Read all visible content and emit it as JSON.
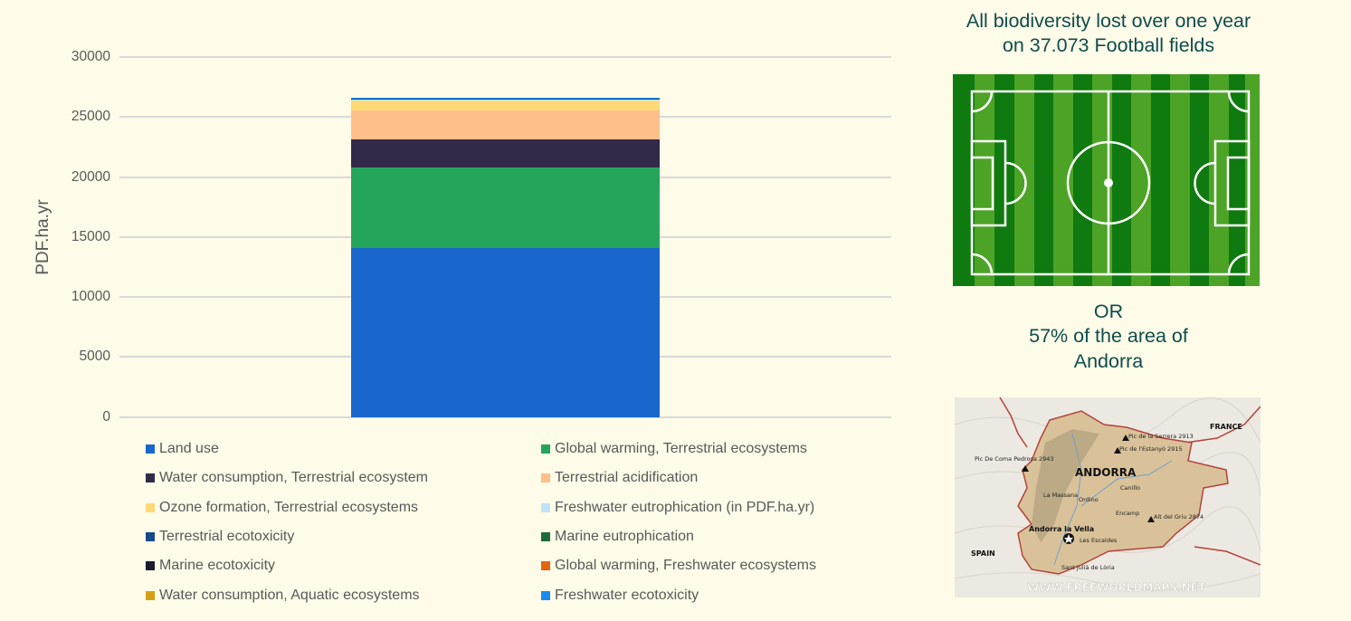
{
  "chart_data": {
    "type": "bar",
    "stacked": true,
    "title": "",
    "xlabel": "",
    "ylabel": "PDF.ha.yr",
    "ylim": [
      0,
      30000
    ],
    "yticks": [
      0,
      5000,
      10000,
      15000,
      20000,
      25000,
      30000
    ],
    "grid": true,
    "legend_position": "bottom",
    "categories": [
      ""
    ],
    "series": [
      {
        "name": "Land use",
        "color": "#1967CC",
        "values": [
          14060
        ]
      },
      {
        "name": "Global warming, Terrestrial ecosystems",
        "color": "#25A55C",
        "values": [
          6690
        ]
      },
      {
        "name": "Water consumption, Terrestrial ecosystem",
        "color": "#332A4A",
        "values": [
          2330
        ]
      },
      {
        "name": "Terrestrial acidification",
        "color": "#FFBF8A",
        "values": [
          2410
        ]
      },
      {
        "name": "Ozone formation, Terrestrial ecosystems",
        "color": "#FDD975",
        "values": [
          830
        ]
      },
      {
        "name": "Freshwater eutrophication (in PDF.ha.yr)",
        "color": "#BFE2F9",
        "values": [
          40
        ]
      },
      {
        "name": "Terrestrial ecotoxicity",
        "color": "#154A8A",
        "values": [
          110
        ]
      },
      {
        "name": "Marine eutrophication",
        "color": "#1D6B3A",
        "values": [
          5
        ]
      },
      {
        "name": "Marine ecotoxicity",
        "color": "#1C1A2E",
        "values": [
          2
        ]
      },
      {
        "name": "Global warming, Freshwater ecosystems",
        "color": "#E5650F",
        "values": [
          1
        ]
      },
      {
        "name": "Water consumption, Aquatic ecosystems",
        "color": "#D4A013",
        "values": [
          1
        ]
      },
      {
        "name": "Freshwater ecotoxicity",
        "color": "#1A8CF0",
        "values": [
          2
        ]
      }
    ],
    "total": 26481
  },
  "legend": [
    {
      "label": "Land use",
      "color": "#1967CC"
    },
    {
      "label": "Global warming, Terrestrial ecosystems",
      "color": "#25A55C"
    },
    {
      "label": "Water consumption, Terrestrial ecosystem",
      "color": "#332A4A"
    },
    {
      "label": "Terrestrial acidification",
      "color": "#FFBF8A"
    },
    {
      "label": "Ozone formation, Terrestrial ecosystems",
      "color": "#FDD975"
    },
    {
      "label": "Freshwater eutrophication (in PDF.ha.yr)",
      "color": "#BFE2F9"
    },
    {
      "label": "Terrestrial ecotoxicity",
      "color": "#154A8A"
    },
    {
      "label": "Marine eutrophication",
      "color": "#1D6B3A"
    },
    {
      "label": "Marine ecotoxicity",
      "color": "#1C1A2E"
    },
    {
      "label": "Global warming, Freshwater ecosystems",
      "color": "#E5650F"
    },
    {
      "label": "Water consumption, Aquatic ecosystems",
      "color": "#D4A013"
    },
    {
      "label": "Freshwater ecotoxicity",
      "color": "#1A8CF0"
    }
  ],
  "axis": {
    "ylabel": "PDF.ha.yr",
    "ticks": [
      "0",
      "5000",
      "10000",
      "15000",
      "20000",
      "25000",
      "30000"
    ]
  },
  "panel": {
    "heading_line1": "All biodiversity lost over one year",
    "heading_line2": "on 37.073 Football fields",
    "or_text": "OR",
    "area_line1": "57% of the area of",
    "area_line2": "Andorra",
    "caption_color": "#0E4C4C"
  },
  "map": {
    "country": "ANDORRA",
    "neighbors": [
      "FRANCE",
      "SPAIN"
    ],
    "capital": "Andorra la Vella",
    "towns": [
      "Canillo",
      "La Massana",
      "Ordino",
      "Encamp",
      "Les Escaldes",
      "Sant Julià de Lòria"
    ],
    "peaks": [
      "Pic de la Serrera 2913",
      "Pic de l'Estanyó 2915",
      "Pic De Coma Pedrosa 2943",
      "Alt del Griu 2874"
    ],
    "watermark": "WWW.FREEWORLDMAPS.NET"
  }
}
